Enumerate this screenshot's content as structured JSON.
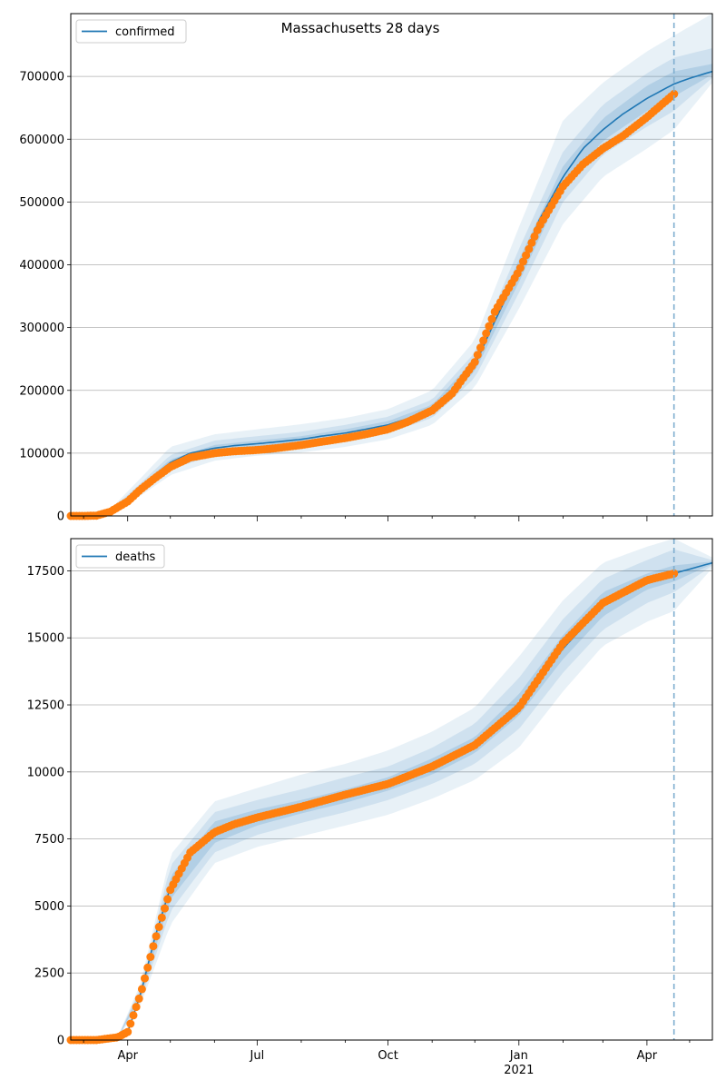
{
  "chart_data": [
    {
      "type": "line",
      "title": "Massachusetts 28 days",
      "xlabel": "",
      "ylabel": "",
      "x_type": "date",
      "xlim": [
        "2020-02-21",
        "2021-05-17"
      ],
      "ylim": [
        0,
        800000
      ],
      "yticks": [
        0,
        100000,
        200000,
        300000,
        400000,
        500000,
        600000,
        700000
      ],
      "ytick_labels": [
        "0",
        "100000",
        "200000",
        "300000",
        "400000",
        "500000",
        "600000",
        "700000"
      ],
      "grid": "horizontal",
      "legend": {
        "position": "top-left",
        "entries": [
          "confirmed"
        ]
      },
      "forecast_start": "2021-04-20",
      "colors": {
        "model": "#1f77b4",
        "observed": "#ff7f0e",
        "band": "#1f77b4",
        "vline": "#7faecf"
      },
      "series": [
        {
          "name": "confirmed",
          "role": "model",
          "x": [
            "2020-02-21",
            "2020-03-01",
            "2020-03-10",
            "2020-03-20",
            "2020-04-01",
            "2020-04-10",
            "2020-04-20",
            "2020-05-01",
            "2020-05-15",
            "2020-06-01",
            "2020-06-15",
            "2020-07-01",
            "2020-07-15",
            "2020-08-01",
            "2020-08-15",
            "2020-09-01",
            "2020-09-15",
            "2020-10-01",
            "2020-10-15",
            "2020-11-01",
            "2020-11-15",
            "2020-12-01",
            "2020-12-15",
            "2021-01-01",
            "2021-01-15",
            "2021-02-01",
            "2021-02-15",
            "2021-03-01",
            "2021-03-15",
            "2021-04-01",
            "2021-04-20",
            "2021-05-01",
            "2021-05-17"
          ],
          "values": [
            0,
            0,
            1000,
            8000,
            25000,
            45000,
            65000,
            85000,
            100000,
            108000,
            112000,
            115000,
            118000,
            122000,
            127000,
            132000,
            138000,
            145000,
            155000,
            170000,
            195000,
            240000,
            310000,
            390000,
            470000,
            540000,
            585000,
            615000,
            640000,
            665000,
            688000,
            697000,
            708000
          ]
        },
        {
          "name": "observed",
          "role": "observed",
          "x": [
            "2020-02-21",
            "2020-03-01",
            "2020-03-10",
            "2020-03-20",
            "2020-04-01",
            "2020-04-10",
            "2020-04-20",
            "2020-05-01",
            "2020-05-15",
            "2020-06-01",
            "2020-06-15",
            "2020-07-01",
            "2020-07-15",
            "2020-08-01",
            "2020-08-15",
            "2020-09-01",
            "2020-09-15",
            "2020-10-01",
            "2020-10-15",
            "2020-11-01",
            "2020-11-15",
            "2020-12-01",
            "2020-12-15",
            "2021-01-01",
            "2021-01-15",
            "2021-02-01",
            "2021-02-15",
            "2021-03-01",
            "2021-03-15",
            "2021-04-01",
            "2021-04-20"
          ],
          "values": [
            0,
            0,
            500,
            7000,
            23000,
            42000,
            60000,
            78000,
            93000,
            100000,
            103000,
            105000,
            108000,
            113000,
            118000,
            124000,
            130000,
            138000,
            150000,
            168000,
            195000,
            245000,
            325000,
            390000,
            460000,
            525000,
            560000,
            585000,
            605000,
            635000,
            672000
          ]
        }
      ],
      "bands": [
        {
          "level": "outer",
          "x": [
            "2020-02-21",
            "2020-03-20",
            "2020-04-10",
            "2020-05-01",
            "2020-06-01",
            "2020-07-01",
            "2020-08-01",
            "2020-09-01",
            "2020-10-01",
            "2020-11-01",
            "2020-12-01",
            "2021-01-01",
            "2021-02-01",
            "2021-03-01",
            "2021-04-01",
            "2021-04-20",
            "2021-05-17"
          ],
          "lower": [
            0,
            5000,
            32000,
            65000,
            88000,
            96000,
            101000,
            110000,
            122000,
            145000,
            205000,
            330000,
            465000,
            540000,
            585000,
            615000,
            690000
          ],
          "upper": [
            0,
            11000,
            60000,
            110000,
            130000,
            138000,
            146000,
            156000,
            170000,
            200000,
            280000,
            460000,
            630000,
            690000,
            740000,
            765000,
            800000
          ]
        },
        {
          "level": "middle",
          "x": [
            "2020-02-21",
            "2020-03-20",
            "2020-04-10",
            "2020-05-01",
            "2020-06-01",
            "2020-07-01",
            "2020-08-01",
            "2020-09-01",
            "2020-10-01",
            "2020-11-01",
            "2020-12-01",
            "2021-01-01",
            "2021-02-01",
            "2021-03-01",
            "2021-04-01",
            "2021-04-20",
            "2021-05-17"
          ],
          "lower": [
            0,
            6500,
            38000,
            74000,
            97000,
            104000,
            110000,
            119000,
            132000,
            156000,
            220000,
            355000,
            500000,
            575000,
            620000,
            645000,
            698000
          ],
          "upper": [
            0,
            9500,
            52000,
            97000,
            120000,
            127000,
            134000,
            145000,
            158000,
            185000,
            260000,
            425000,
            580000,
            655000,
            705000,
            730000,
            745000
          ]
        },
        {
          "level": "inner",
          "x": [
            "2020-02-21",
            "2020-03-20",
            "2020-04-10",
            "2020-05-01",
            "2020-06-01",
            "2020-07-01",
            "2020-08-01",
            "2020-09-01",
            "2020-10-01",
            "2020-11-01",
            "2020-12-01",
            "2021-01-01",
            "2021-02-01",
            "2021-03-01",
            "2021-04-01",
            "2021-04-20",
            "2021-05-17"
          ],
          "lower": [
            0,
            7500,
            42000,
            80000,
            103000,
            110000,
            117000,
            126000,
            139000,
            163000,
            230000,
            372000,
            523000,
            597000,
            645000,
            668000,
            703000
          ],
          "upper": [
            0,
            8500,
            48000,
            90000,
            113000,
            120000,
            127000,
            138000,
            151000,
            177000,
            250000,
            408000,
            557000,
            633000,
            685000,
            708000,
            720000
          ]
        }
      ]
    },
    {
      "type": "line",
      "title": "",
      "xlabel": "",
      "ylabel": "",
      "x_type": "date",
      "xlim": [
        "2020-02-21",
        "2021-05-17"
      ],
      "ylim": [
        0,
        18700
      ],
      "yticks": [
        0,
        2500,
        5000,
        7500,
        10000,
        12500,
        15000,
        17500
      ],
      "ytick_labels": [
        "0",
        "2500",
        "5000",
        "7500",
        "10000",
        "12500",
        "15000",
        "17500"
      ],
      "xticks": [
        "2020-04-01",
        "2020-07-01",
        "2020-10-01",
        "2021-01-01",
        "2021-04-01"
      ],
      "xtick_labels": [
        "Apr",
        "Jul",
        "Oct",
        "Jan",
        "Apr"
      ],
      "xtick_sublabels": [
        "",
        "",
        "",
        "2021",
        ""
      ],
      "grid": "horizontal",
      "legend": {
        "position": "top-left",
        "entries": [
          "deaths"
        ]
      },
      "forecast_start": "2021-04-20",
      "colors": {
        "model": "#1f77b4",
        "observed": "#ff7f0e",
        "band": "#1f77b4",
        "vline": "#7faecf"
      },
      "series": [
        {
          "name": "deaths",
          "role": "model",
          "x": [
            "2020-02-21",
            "2020-03-10",
            "2020-03-25",
            "2020-04-01",
            "2020-04-10",
            "2020-04-20",
            "2020-05-01",
            "2020-05-15",
            "2020-06-01",
            "2020-06-15",
            "2020-07-01",
            "2020-08-01",
            "2020-09-01",
            "2020-10-01",
            "2020-11-01",
            "2020-12-01",
            "2021-01-01",
            "2021-02-01",
            "2021-03-01",
            "2021-04-01",
            "2021-04-20",
            "2021-05-17"
          ],
          "values": [
            0,
            0,
            100,
            300,
            1700,
            3800,
            5700,
            7000,
            7700,
            8050,
            8300,
            8700,
            9100,
            9550,
            10200,
            11000,
            12500,
            14600,
            16200,
            17100,
            17400,
            17800
          ]
        },
        {
          "name": "observed",
          "role": "observed",
          "x": [
            "2020-02-21",
            "2020-03-10",
            "2020-03-25",
            "2020-04-01",
            "2020-04-10",
            "2020-04-20",
            "2020-05-01",
            "2020-05-15",
            "2020-06-01",
            "2020-06-15",
            "2020-07-01",
            "2020-08-01",
            "2020-09-01",
            "2020-10-01",
            "2020-11-01",
            "2020-12-01",
            "2021-01-01",
            "2021-02-01",
            "2021-03-01",
            "2021-04-01",
            "2021-04-20"
          ],
          "values": [
            0,
            0,
            100,
            300,
            1700,
            3700,
            5600,
            7000,
            7750,
            8050,
            8300,
            8700,
            9150,
            9550,
            10200,
            11000,
            12400,
            14800,
            16300,
            17150,
            17400
          ]
        }
      ],
      "bands": [
        {
          "level": "outer",
          "x": [
            "2020-02-21",
            "2020-03-25",
            "2020-04-10",
            "2020-05-01",
            "2020-06-01",
            "2020-07-01",
            "2020-08-01",
            "2020-09-01",
            "2020-10-01",
            "2020-11-01",
            "2020-12-01",
            "2021-01-01",
            "2021-02-01",
            "2021-03-01",
            "2021-04-01",
            "2021-04-20",
            "2021-05-17"
          ],
          "lower": [
            0,
            80,
            1300,
            4300,
            6600,
            7200,
            7600,
            8000,
            8400,
            9000,
            9700,
            10900,
            13000,
            14700,
            15600,
            16000,
            17600
          ],
          "upper": [
            0,
            120,
            2100,
            6900,
            8900,
            9400,
            9900,
            10300,
            10800,
            11500,
            12400,
            14300,
            16400,
            17800,
            18400,
            18700,
            18000
          ]
        },
        {
          "level": "middle",
          "x": [
            "2020-02-21",
            "2020-03-25",
            "2020-04-10",
            "2020-05-01",
            "2020-06-01",
            "2020-07-01",
            "2020-08-01",
            "2020-09-01",
            "2020-10-01",
            "2020-11-01",
            "2020-12-01",
            "2021-01-01",
            "2021-02-01",
            "2021-03-01",
            "2021-04-01",
            "2021-04-20",
            "2021-05-17"
          ],
          "lower": [
            0,
            90,
            1450,
            4800,
            7000,
            7650,
            8100,
            8500,
            8950,
            9550,
            10300,
            11600,
            13700,
            15300,
            16300,
            16700,
            17700
          ],
          "upper": [
            0,
            110,
            1950,
            6500,
            8500,
            8950,
            9350,
            9800,
            10200,
            10900,
            11800,
            13500,
            15700,
            17200,
            17900,
            18300,
            17900
          ]
        },
        {
          "level": "inner",
          "x": [
            "2020-02-21",
            "2020-03-25",
            "2020-04-10",
            "2020-05-01",
            "2020-06-01",
            "2020-07-01",
            "2020-08-01",
            "2020-09-01",
            "2020-10-01",
            "2020-11-01",
            "2020-12-01",
            "2021-01-01",
            "2021-02-01",
            "2021-03-01",
            "2021-04-01",
            "2021-04-20",
            "2021-05-17"
          ],
          "lower": [
            0,
            95,
            1580,
            5250,
            7350,
            8000,
            8450,
            8850,
            9300,
            9900,
            10700,
            12100,
            14200,
            15800,
            16800,
            17100,
            17750
          ],
          "upper": [
            0,
            105,
            1820,
            6100,
            8150,
            8600,
            8950,
            9350,
            9800,
            10500,
            11300,
            12900,
            15100,
            16700,
            17400,
            17700,
            17850
          ]
        }
      ]
    }
  ]
}
